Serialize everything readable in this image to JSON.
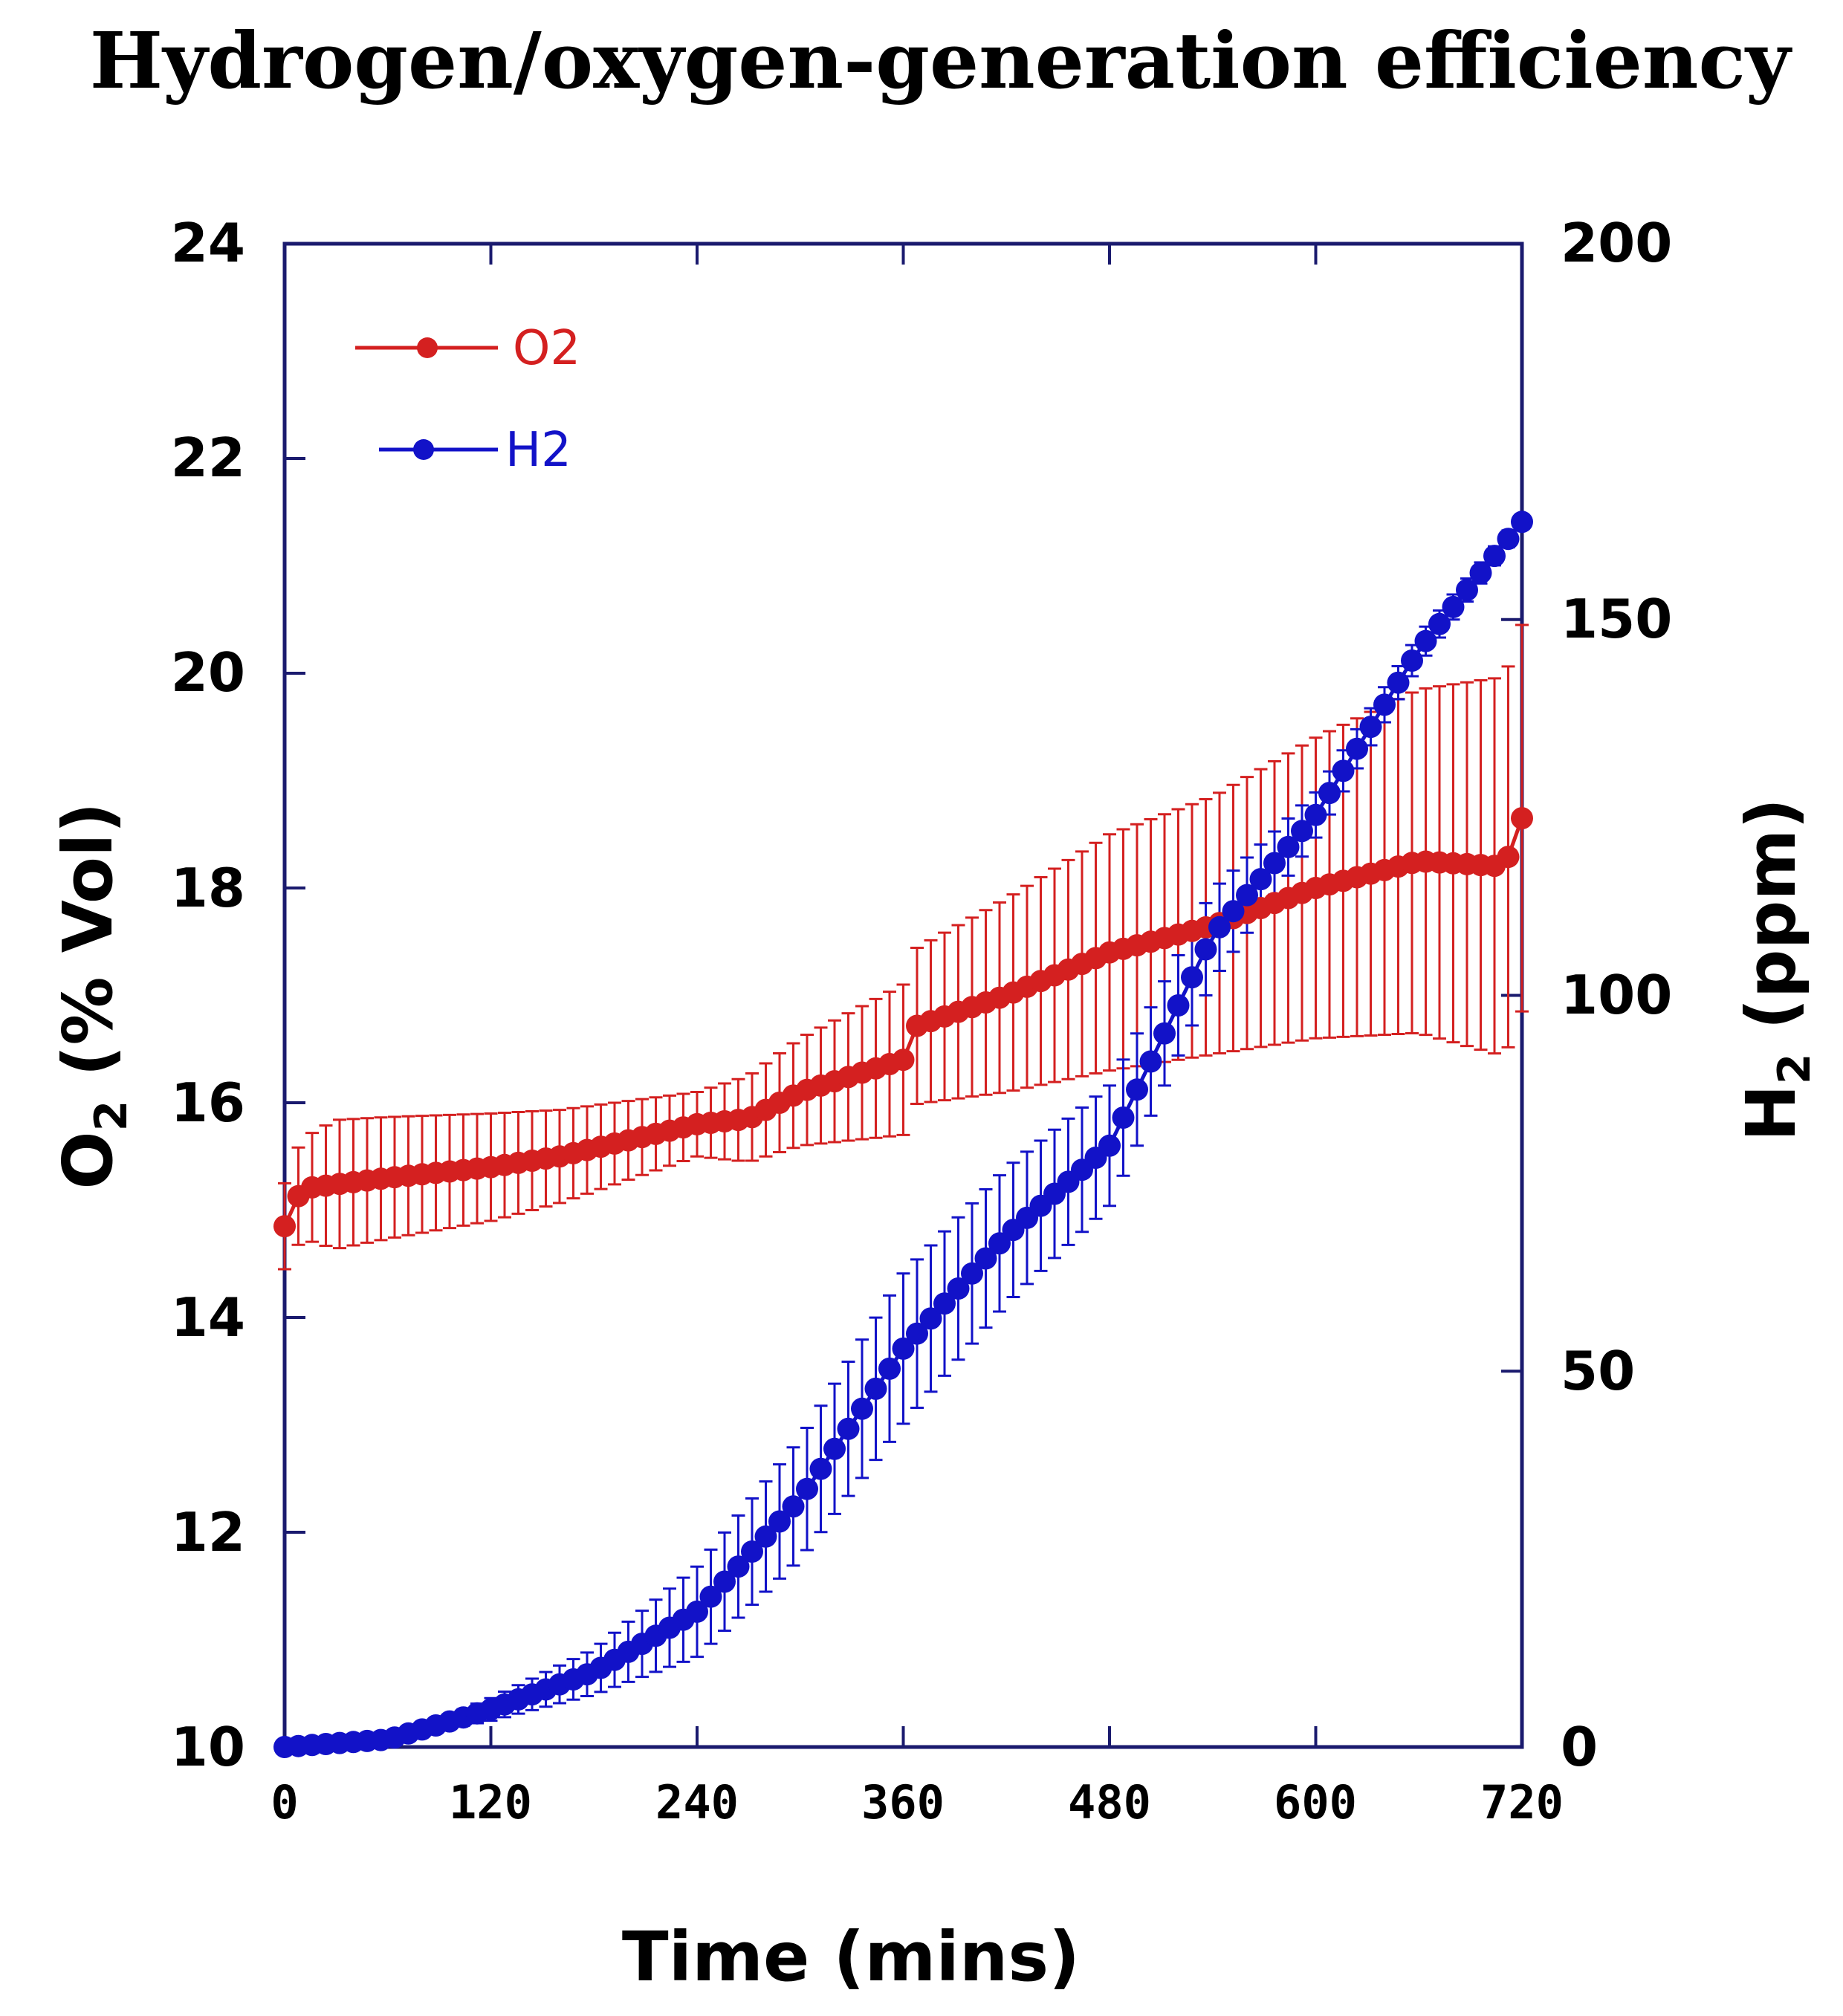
{
  "chart_data": {
    "type": "line",
    "title": "Hydrogen/oxygen-generation efficiency",
    "xlabel": "Time (mins)",
    "ylabel_left": {
      "main": "O",
      "sub": "2",
      "rest": " (% Vol)"
    },
    "ylabel_right": {
      "main": "H",
      "sub": "2",
      "rest": " (ppm)"
    },
    "xlim": [
      0,
      720
    ],
    "ylim_left": [
      10,
      24
    ],
    "ylim_right": [
      0,
      200
    ],
    "x_ticks": [
      "0",
      "120",
      "240",
      "360",
      "480",
      "600",
      "720"
    ],
    "y_left_ticks": [
      "10",
      "12",
      "14",
      "16",
      "18",
      "20",
      "22",
      "24"
    ],
    "y_right_ticks": [
      "0",
      "50",
      "100",
      "150",
      "200"
    ],
    "series": [
      {
        "name": "O2",
        "axis": "left",
        "color": "#d42020",
        "anchors": [
          [
            0,
            14.85
          ],
          [
            10,
            15.2
          ],
          [
            60,
            15.3
          ],
          [
            120,
            15.4
          ],
          [
            160,
            15.5
          ],
          [
            240,
            15.8
          ],
          [
            270,
            15.85
          ],
          [
            300,
            16.1
          ],
          [
            360,
            16.4
          ],
          [
            365,
            16.7
          ],
          [
            420,
            17.0
          ],
          [
            480,
            17.4
          ],
          [
            540,
            17.65
          ],
          [
            600,
            18.0
          ],
          [
            660,
            18.25
          ],
          [
            710,
            18.2
          ],
          [
            720,
            18.65
          ]
        ],
        "err_anchors": [
          [
            0,
            0.4
          ],
          [
            30,
            0.6
          ],
          [
            120,
            0.5
          ],
          [
            240,
            0.3
          ],
          [
            300,
            0.5
          ],
          [
            360,
            0.7
          ],
          [
            420,
            0.9
          ],
          [
            480,
            1.1
          ],
          [
            540,
            1.2
          ],
          [
            600,
            1.4
          ],
          [
            660,
            1.6
          ],
          [
            720,
            1.8
          ]
        ]
      },
      {
        "name": "H2",
        "axis": "right",
        "color": "#1212c8",
        "anchors": [
          [
            0,
            0
          ],
          [
            60,
            1
          ],
          [
            120,
            5
          ],
          [
            180,
            10
          ],
          [
            240,
            18
          ],
          [
            300,
            33
          ],
          [
            360,
            53
          ],
          [
            420,
            68
          ],
          [
            480,
            80
          ],
          [
            540,
            108
          ],
          [
            600,
            124
          ],
          [
            660,
            146
          ],
          [
            720,
            163
          ]
        ],
        "err_anchors": [
          [
            0,
            0
          ],
          [
            100,
            1
          ],
          [
            180,
            3
          ],
          [
            240,
            6
          ],
          [
            300,
            8
          ],
          [
            360,
            10
          ],
          [
            420,
            9
          ],
          [
            480,
            8
          ],
          [
            540,
            6
          ],
          [
            600,
            3
          ],
          [
            720,
            1
          ]
        ]
      }
    ],
    "legend": {
      "position": "top-left",
      "entries": [
        "O2",
        "H2"
      ]
    }
  }
}
